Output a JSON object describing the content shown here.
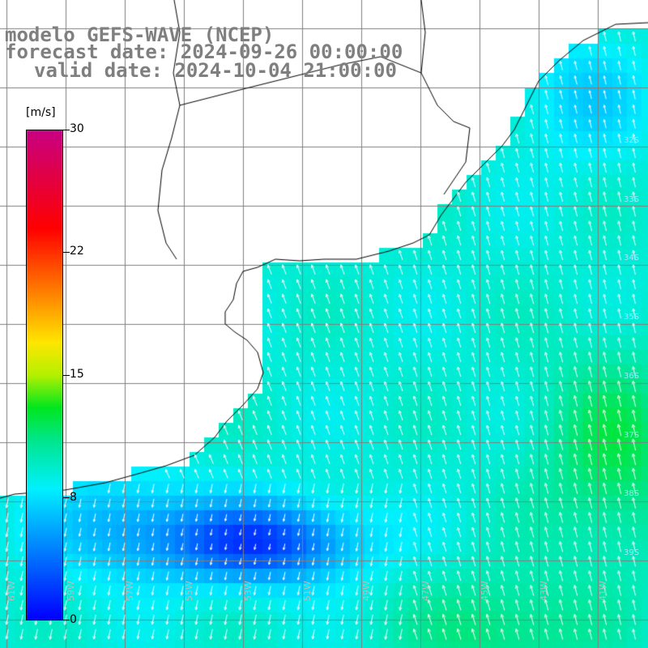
{
  "title": {
    "line1": "modelo GEFS-WAVE (NCEP)",
    "line2": "forecast date: 2024-09-26 00:00:00",
    "line3": "valid date: 2024-10-04 21:00:00"
  },
  "colorbar": {
    "unit": "[m/s]",
    "ticks": [
      "30",
      "22",
      "15",
      "8",
      "0"
    ],
    "tick_values": [
      30,
      22,
      15,
      8,
      0
    ],
    "min": 0,
    "max": 30
  },
  "map": {
    "variable": "wind speed and direction",
    "lon_labels": [
      "61W",
      "59W",
      "57W",
      "55W",
      "53W",
      "51W",
      "49W",
      "47W",
      "45W",
      "43W",
      "41W"
    ],
    "lat_labels": [
      "32S",
      "33S",
      "34S",
      "35S",
      "36S",
      "37S",
      "38S",
      "39S"
    ],
    "colors": {
      "land": "#ffffff",
      "grid": "#7f7f7f",
      "coast": "#000000",
      "arrow": "#ffffff"
    }
  }
}
